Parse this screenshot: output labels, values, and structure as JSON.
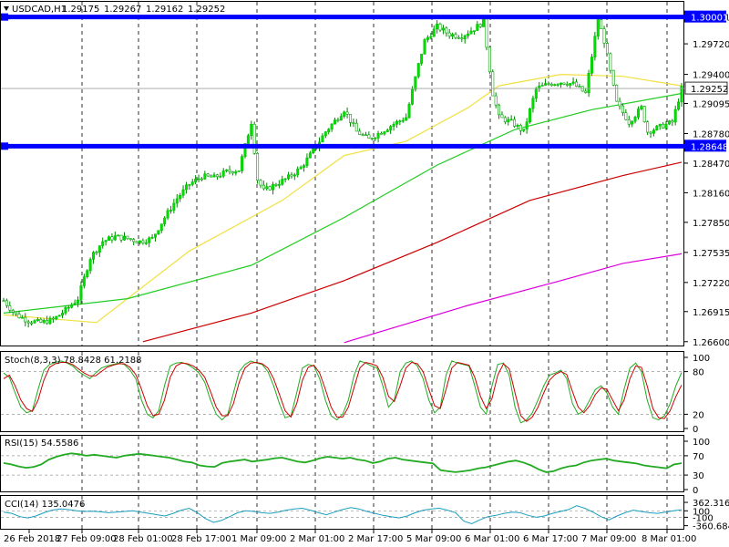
{
  "header": {
    "symbol": "USDCAD,H1",
    "open": "1.29175",
    "high": "1.29267",
    "low": "1.29162",
    "close": "1.29252"
  },
  "chart_data": [
    {
      "type": "candlestick",
      "title": "USDCAD,H1",
      "ylim": [
        1.2655,
        1.3016
      ],
      "y_ticks": [
        1.30001,
        1.2972,
        1.294,
        1.29095,
        1.2878,
        1.2847,
        1.2816,
        1.2785,
        1.27535,
        1.2722,
        1.26915,
        1.266
      ],
      "y_tick_labels": [
        "1.30001",
        "1.29720",
        "1.29400",
        "1.29095",
        "1.28780",
        "1.28470",
        "1.28160",
        "1.27850",
        "1.27535",
        "1.27220",
        "1.26915",
        "1.26600"
      ],
      "x_labels": [
        "26 Feb 2018",
        "27 Feb 09:00",
        "28 Feb 01:00",
        "28 Feb 17:00",
        "1 Mar 09:00",
        "2 Mar 01:00",
        "2 Mar 17:00",
        "5 Mar 09:00",
        "6 Mar 01:00",
        "6 Mar 17:00",
        "7 Mar 09:00",
        "8 Mar 01:00"
      ],
      "current_price": "1.29252",
      "current_price_value": 1.29252,
      "horizontal_levels": [
        {
          "label": "1.30001",
          "value": 1.30001,
          "color": "#0000ff"
        },
        {
          "label": "1.28648",
          "value": 1.28648,
          "color": "#0000ff"
        }
      ],
      "close_path": [
        [
          0,
          1.2703
        ],
        [
          4,
          1.2688
        ],
        [
          8,
          1.2682
        ],
        [
          12,
          1.268
        ],
        [
          16,
          1.2683
        ],
        [
          20,
          1.2693
        ],
        [
          24,
          1.2705
        ],
        [
          28,
          1.2748
        ],
        [
          32,
          1.2765
        ],
        [
          36,
          1.277
        ],
        [
          40,
          1.2768
        ],
        [
          44,
          1.2765
        ],
        [
          48,
          1.2768
        ],
        [
          52,
          1.279
        ],
        [
          56,
          1.281
        ],
        [
          60,
          1.2825
        ],
        [
          64,
          1.2833
        ],
        [
          68,
          1.2832
        ],
        [
          72,
          1.2838
        ],
        [
          76,
          1.284
        ],
        [
          80,
          1.289
        ],
        [
          82,
          1.283
        ],
        [
          84,
          1.2818
        ],
        [
          88,
          1.2825
        ],
        [
          92,
          1.2832
        ],
        [
          96,
          1.2842
        ],
        [
          100,
          1.286
        ],
        [
          104,
          1.288
        ],
        [
          108,
          1.2895
        ],
        [
          110,
          1.2903
        ],
        [
          114,
          1.288
        ],
        [
          118,
          1.2872
        ],
        [
          122,
          1.288
        ],
        [
          126,
          1.2888
        ],
        [
          130,
          1.2895
        ],
        [
          134,
          1.295
        ],
        [
          136,
          1.2975
        ],
        [
          140,
          1.299
        ],
        [
          144,
          1.2982
        ],
        [
          148,
          1.298
        ],
        [
          152,
          1.2988
        ],
        [
          155,
          1.2995
        ],
        [
          158,
          1.292
        ],
        [
          160,
          1.2895
        ],
        [
          164,
          1.289
        ],
        [
          168,
          1.288
        ],
        [
          172,
          1.2925
        ],
        [
          176,
          1.293
        ],
        [
          180,
          1.2932
        ],
        [
          184,
          1.293
        ],
        [
          188,
          1.292
        ],
        [
          192,
          1.2998
        ],
        [
          194,
          1.2975
        ],
        [
          198,
          1.291
        ],
        [
          202,
          1.289
        ],
        [
          206,
          1.2905
        ],
        [
          208,
          1.288
        ],
        [
          212,
          1.2885
        ],
        [
          216,
          1.289
        ],
        [
          219,
          1.29252
        ]
      ],
      "series": [
        {
          "name": "MA yellow",
          "color": "#f0e040",
          "points": [
            [
              0,
              1.2688
            ],
            [
              30,
              1.268
            ],
            [
              60,
              1.2755
            ],
            [
              90,
              1.2808
            ],
            [
              110,
              1.2855
            ],
            [
              130,
              1.287
            ],
            [
              150,
              1.2905
            ],
            [
              160,
              1.2928
            ],
            [
              180,
              1.294
            ],
            [
              200,
              1.2938
            ],
            [
              219,
              1.2928
            ]
          ]
        },
        {
          "name": "MA green",
          "color": "#22cc22",
          "points": [
            [
              0,
              1.269
            ],
            [
              40,
              1.2705
            ],
            [
              80,
              1.274
            ],
            [
              110,
              1.279
            ],
            [
              140,
              1.2845
            ],
            [
              165,
              1.2882
            ],
            [
              190,
              1.2903
            ],
            [
              219,
              1.292
            ]
          ]
        },
        {
          "name": "MA red",
          "color": "#cc0000",
          "points": [
            [
              45,
              1.266
            ],
            [
              80,
              1.269
            ],
            [
              110,
              1.2724
            ],
            [
              140,
              1.2764
            ],
            [
              170,
              1.2808
            ],
            [
              200,
              1.2834
            ],
            [
              219,
              1.2848
            ]
          ]
        },
        {
          "name": "MA magenta",
          "color": "#dd00dd",
          "points": [
            [
              110,
              1.2659
            ],
            [
              150,
              1.2698
            ],
            [
              180,
              1.2724
            ],
            [
              200,
              1.2742
            ],
            [
              219,
              1.2752
            ]
          ]
        }
      ]
    },
    {
      "type": "line",
      "title": "Stoch(8,3,3) 78.8428 61.2188",
      "ylim": [
        0,
        100
      ],
      "y_tick_labels": [
        "100",
        "80",
        "20",
        "0"
      ],
      "y_ticks": [
        100,
        80,
        20,
        0
      ],
      "series": [
        {
          "name": "main",
          "color": "#22aa22",
          "values": [
            78,
            72,
            50,
            30,
            22,
            25,
            55,
            82,
            90,
            93,
            95,
            92,
            88,
            80,
            75,
            70,
            78,
            85,
            88,
            90,
            92,
            90,
            82,
            70,
            40,
            20,
            15,
            25,
            60,
            88,
            92,
            93,
            90,
            85,
            78,
            65,
            40,
            20,
            12,
            20,
            50,
            80,
            90,
            95,
            92,
            90,
            80,
            60,
            35,
            15,
            18,
            50,
            85,
            90,
            88,
            70,
            40,
            18,
            12,
            20,
            40,
            75,
            95,
            92,
            88,
            85,
            60,
            30,
            40,
            80,
            92,
            95,
            88,
            70,
            40,
            22,
            30,
            75,
            95,
            92,
            90,
            88,
            60,
            30,
            20,
            60,
            90,
            92,
            75,
            30,
            8,
            12,
            22,
            40,
            60,
            75,
            78,
            82,
            70,
            35,
            20,
            25,
            40,
            55,
            60,
            50,
            30,
            20,
            55,
            85,
            92,
            80,
            40,
            15,
            12,
            18,
            35,
            60,
            78.8
          ]
        },
        {
          "name": "signal",
          "color": "#cc0000",
          "values": [
            70,
            75,
            60,
            40,
            28,
            24,
            40,
            68,
            86,
            91,
            93,
            93,
            90,
            84,
            78,
            74,
            74,
            80,
            86,
            89,
            91,
            91,
            86,
            76,
            55,
            32,
            18,
            20,
            40,
            72,
            88,
            92,
            91,
            88,
            82,
            72,
            52,
            30,
            18,
            18,
            35,
            65,
            85,
            92,
            93,
            91,
            85,
            70,
            48,
            25,
            16,
            35,
            68,
            86,
            89,
            78,
            55,
            30,
            16,
            16,
            30,
            58,
            85,
            93,
            91,
            88,
            72,
            45,
            38,
            60,
            85,
            93,
            91,
            80,
            55,
            32,
            28,
            55,
            85,
            93,
            91,
            89,
            72,
            45,
            28,
            42,
            75,
            91,
            84,
            50,
            18,
            10,
            16,
            30,
            50,
            68,
            76,
            80,
            76,
            52,
            30,
            22,
            32,
            48,
            57,
            55,
            40,
            25,
            40,
            70,
            88,
            86,
            60,
            28,
            15,
            14,
            25,
            45,
            61.2
          ]
        }
      ]
    },
    {
      "type": "line",
      "title": "RSI(15) 54.5586",
      "ylim": [
        0,
        100
      ],
      "y_tick_labels": [
        "100",
        "70",
        "30",
        "0"
      ],
      "y_ticks": [
        100,
        70,
        30,
        0
      ],
      "series": [
        {
          "name": "RSI",
          "color": "#22aa22",
          "values": [
            55,
            52,
            48,
            45,
            47,
            52,
            62,
            68,
            72,
            75,
            73,
            70,
            72,
            70,
            68,
            66,
            70,
            72,
            74,
            72,
            70,
            68,
            66,
            62,
            58,
            56,
            50,
            48,
            47,
            55,
            58,
            60,
            62,
            58,
            60,
            62,
            65,
            66,
            62,
            58,
            56,
            60,
            65,
            68,
            66,
            64,
            66,
            62,
            60,
            55,
            58,
            64,
            66,
            62,
            60,
            58,
            56,
            54,
            40,
            38,
            36,
            38,
            40,
            44,
            46,
            50,
            54,
            58,
            60,
            56,
            50,
            42,
            36,
            38,
            44,
            48,
            50,
            56,
            60,
            62,
            64,
            60,
            58,
            56,
            54,
            50,
            48,
            46,
            44,
            52,
            54.5
          ]
        }
      ]
    },
    {
      "type": "line",
      "title": "CCI(14) 135.0476",
      "ylim": [
        -400,
        420
      ],
      "y_tick_labels": [
        "362.3166",
        "100",
        "-100",
        "-360.6845"
      ],
      "y_ticks": [
        362.3166,
        100,
        -100,
        -360.6845
      ],
      "series": [
        {
          "name": "CCI",
          "color": "#1a9fbf",
          "values": [
            60,
            20,
            -80,
            -120,
            -60,
            40,
            120,
            160,
            140,
            100,
            80,
            90,
            70,
            40,
            60,
            80,
            100,
            60,
            20,
            -20,
            -60,
            20,
            120,
            180,
            40,
            -140,
            -260,
            -200,
            -80,
            40,
            100,
            80,
            40,
            20,
            60,
            120,
            160,
            180,
            120,
            40,
            -20,
            60,
            140,
            200,
            160,
            80,
            20,
            -40,
            -80,
            -120,
            -60,
            40,
            120,
            160,
            180,
            120,
            40,
            -220,
            -300,
            -180,
            -80,
            -40,
            20,
            60,
            40,
            -40,
            -100,
            -60,
            20,
            80,
            140,
            260,
            180,
            60,
            -80,
            -180,
            -60,
            40,
            120,
            80,
            40,
            20,
            60,
            100,
            135
          ]
        }
      ]
    }
  ]
}
